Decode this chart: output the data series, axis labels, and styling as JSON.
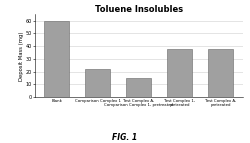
{
  "title": "Toluene Insolubles",
  "ylabel": "Deposit Mass (mg)",
  "x_labels": [
    "Blank",
    "Comparison Complex 1",
    "Test Complex A,\nComparison Complex 1, pretreated",
    "Test Complex 1,\npretreated",
    "Test Complex A,\npretreated"
  ],
  "values": [
    60,
    22,
    15,
    38,
    38
  ],
  "ylim": [
    0,
    65
  ],
  "yticks": [
    0,
    10,
    20,
    30,
    40,
    50,
    60
  ],
  "bar_color": "#a0a0a0",
  "bar_edgecolor": "#666666",
  "background_color": "#ffffff",
  "grid_color": "#d0d0d0",
  "title_fontsize": 6,
  "ylabel_fontsize": 3.8,
  "ytick_fontsize": 3.5,
  "xtick_fontsize": 2.8,
  "fig_caption": "FIG. 1",
  "caption_fontsize": 5.5
}
